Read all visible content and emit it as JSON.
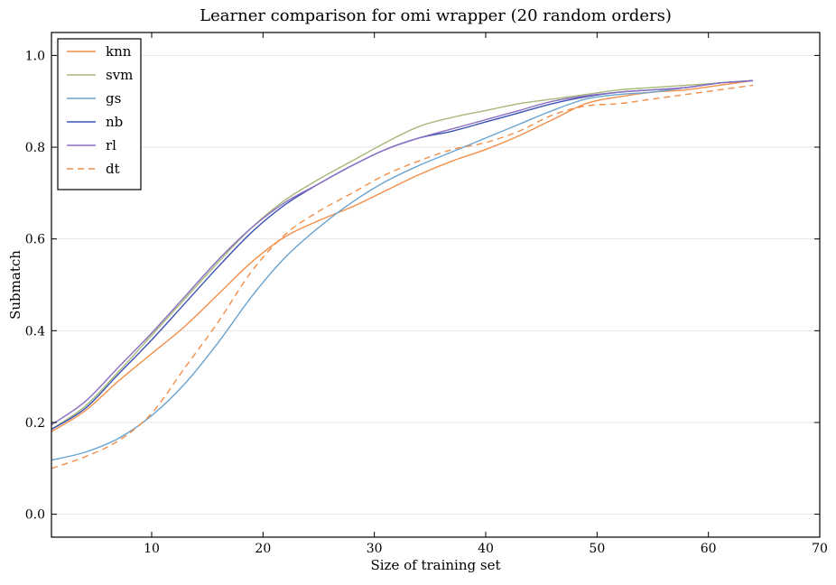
{
  "chart_data": {
    "type": "line",
    "title": "Learner comparison for omi wrapper (20 random orders)",
    "xlabel": "Size of training set",
    "ylabel": "Submatch",
    "xlim": [
      1,
      70
    ],
    "ylim": [
      -0.05,
      1.05
    ],
    "xticks": [
      10,
      20,
      30,
      40,
      50,
      60,
      70
    ],
    "yticks": [
      0.0,
      0.2,
      0.4,
      0.6,
      0.8,
      1.0
    ],
    "xtick_labels": [
      "10",
      "20",
      "30",
      "40",
      "50",
      "60",
      "70"
    ],
    "ytick_labels": [
      "0.0",
      "0.2",
      "0.4",
      "0.6",
      "0.8",
      "1.0"
    ],
    "grid": true,
    "legend_position": "top-left",
    "x": [
      1,
      4,
      7,
      10,
      13,
      16,
      19,
      22,
      25,
      28,
      31,
      34,
      37,
      40,
      43,
      46,
      49,
      52,
      55,
      58,
      61,
      64
    ],
    "series": [
      {
        "name": "knn",
        "color": "#f28e48",
        "dash": "solid",
        "values": [
          0.18,
          0.225,
          0.29,
          0.35,
          0.41,
          0.48,
          0.55,
          0.605,
          0.64,
          0.67,
          0.705,
          0.74,
          0.77,
          0.795,
          0.825,
          0.86,
          0.895,
          0.91,
          0.92,
          0.925,
          0.935,
          0.945
        ]
      },
      {
        "name": "svm",
        "color": "#a6b97a",
        "dash": "solid",
        "values": [
          0.185,
          0.235,
          0.31,
          0.39,
          0.47,
          0.55,
          0.625,
          0.685,
          0.73,
          0.77,
          0.81,
          0.845,
          0.865,
          0.88,
          0.895,
          0.905,
          0.915,
          0.925,
          0.93,
          0.935,
          0.94,
          0.945
        ]
      },
      {
        "name": "gs",
        "color": "#6aa3cf",
        "dash": "solid",
        "values": [
          0.118,
          0.135,
          0.165,
          0.215,
          0.285,
          0.375,
          0.475,
          0.56,
          0.625,
          0.68,
          0.725,
          0.76,
          0.79,
          0.82,
          0.85,
          0.88,
          0.905,
          0.915,
          0.92,
          0.93,
          0.94,
          0.945
        ]
      },
      {
        "name": "nb",
        "color": "#3a52b3",
        "dash": "solid",
        "values": [
          0.185,
          0.23,
          0.305,
          0.38,
          0.46,
          0.54,
          0.615,
          0.675,
          0.72,
          0.76,
          0.795,
          0.82,
          0.835,
          0.855,
          0.875,
          0.895,
          0.91,
          0.92,
          0.925,
          0.93,
          0.94,
          0.945
        ]
      },
      {
        "name": "rl",
        "color": "#8b6ec2",
        "dash": "solid",
        "values": [
          0.195,
          0.245,
          0.32,
          0.395,
          0.475,
          0.555,
          0.625,
          0.68,
          0.72,
          0.76,
          0.795,
          0.82,
          0.84,
          0.86,
          0.88,
          0.9,
          0.912,
          0.92,
          0.925,
          0.93,
          0.94,
          0.945
        ]
      },
      {
        "name": "dt",
        "color": "#f28e48",
        "dash": "dashed",
        "values": [
          0.1,
          0.125,
          0.16,
          0.22,
          0.32,
          0.42,
          0.53,
          0.61,
          0.66,
          0.7,
          0.74,
          0.77,
          0.795,
          0.81,
          0.835,
          0.87,
          0.89,
          0.895,
          0.905,
          0.915,
          0.925,
          0.935
        ]
      }
    ]
  }
}
